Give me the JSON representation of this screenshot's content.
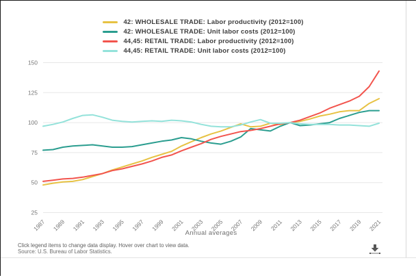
{
  "chart_data": {
    "type": "line",
    "x": [
      1987,
      1988,
      1989,
      1990,
      1991,
      1992,
      1993,
      1994,
      1995,
      1996,
      1997,
      1998,
      1999,
      2000,
      2001,
      2002,
      2003,
      2004,
      2005,
      2006,
      2007,
      2008,
      2009,
      2010,
      2011,
      2012,
      2013,
      2014,
      2015,
      2016,
      2017,
      2018,
      2019,
      2020,
      2021
    ],
    "series": [
      {
        "name": "42: WHOLESALE TRADE: Labor productivity (2012=100)",
        "color": "#e7c243",
        "values": [
          48,
          49.5,
          50.5,
          51,
          52.5,
          55,
          57.5,
          60.5,
          63,
          65.5,
          68,
          71,
          73.5,
          76,
          80.5,
          84,
          87.5,
          90.5,
          93,
          96,
          99,
          96.5,
          97,
          99.5,
          98.5,
          100,
          101,
          103,
          105.5,
          107,
          109,
          110,
          110,
          116,
          120
        ]
      },
      {
        "name": "42: WHOLESALE TRADE: Unit labor costs (2012=100)",
        "color": "#2a9d8f",
        "values": [
          77,
          77.5,
          79.5,
          80.5,
          81,
          81.5,
          80.5,
          79.5,
          79.5,
          80,
          81.5,
          83,
          84.5,
          85.5,
          87.5,
          86.5,
          84.5,
          83,
          82,
          84.5,
          88,
          95,
          94,
          93,
          97,
          100,
          97.5,
          98,
          99,
          100,
          103.5,
          106,
          108.5,
          110,
          110
        ]
      },
      {
        "name": "44,45: RETAIL TRADE: Labor productivity (2012=100)",
        "color": "#f2544d",
        "values": [
          51,
          52,
          53,
          53.5,
          54.5,
          56,
          57.5,
          60,
          61.5,
          63.5,
          65.5,
          68,
          71,
          73,
          76.5,
          79.5,
          82.5,
          86,
          88.5,
          90.5,
          92.5,
          93.5,
          95,
          97,
          99,
          100,
          102,
          105,
          108,
          112,
          115,
          118,
          122,
          130,
          143
        ]
      },
      {
        "name": "44,45: RETAIL TRADE: Unit labor costs (2012=100)",
        "color": "#93e2da",
        "values": [
          97,
          98.5,
          100.5,
          103.5,
          106,
          106.5,
          104.5,
          102,
          101,
          100.5,
          101,
          101.5,
          101,
          102,
          101.5,
          100.5,
          98.5,
          97,
          96.5,
          96.5,
          98,
          100.5,
          102.5,
          99.5,
          99.5,
          100,
          99,
          98.5,
          98.5,
          98.5,
          98,
          98,
          97.5,
          97,
          99.5
        ]
      }
    ],
    "title": "",
    "xlabel": "Annual averages",
    "ylabel": "",
    "ylim": [
      25,
      150
    ],
    "yticks": [
      25,
      50,
      75,
      100,
      125,
      150
    ],
    "xtick_labels": [
      "1987",
      "1989",
      "1991",
      "1993",
      "1995",
      "1997",
      "1999",
      "2001",
      "2003",
      "2005",
      "2007",
      "2009",
      "2011",
      "2013",
      "2015",
      "2017",
      "2019",
      "2021"
    ],
    "grid": "horizontal",
    "legend_position": "top"
  },
  "footer": {
    "instructions": "Click legend items to change data display. Hover over chart to view data.",
    "source": "Source: U.S. Bureau of Labor Statistics."
  },
  "icons": {
    "download": "download-icon"
  },
  "colors": {
    "grid": "#e7e7e7",
    "axis_text": "#767676",
    "legend_text": "#3d3d3d"
  }
}
